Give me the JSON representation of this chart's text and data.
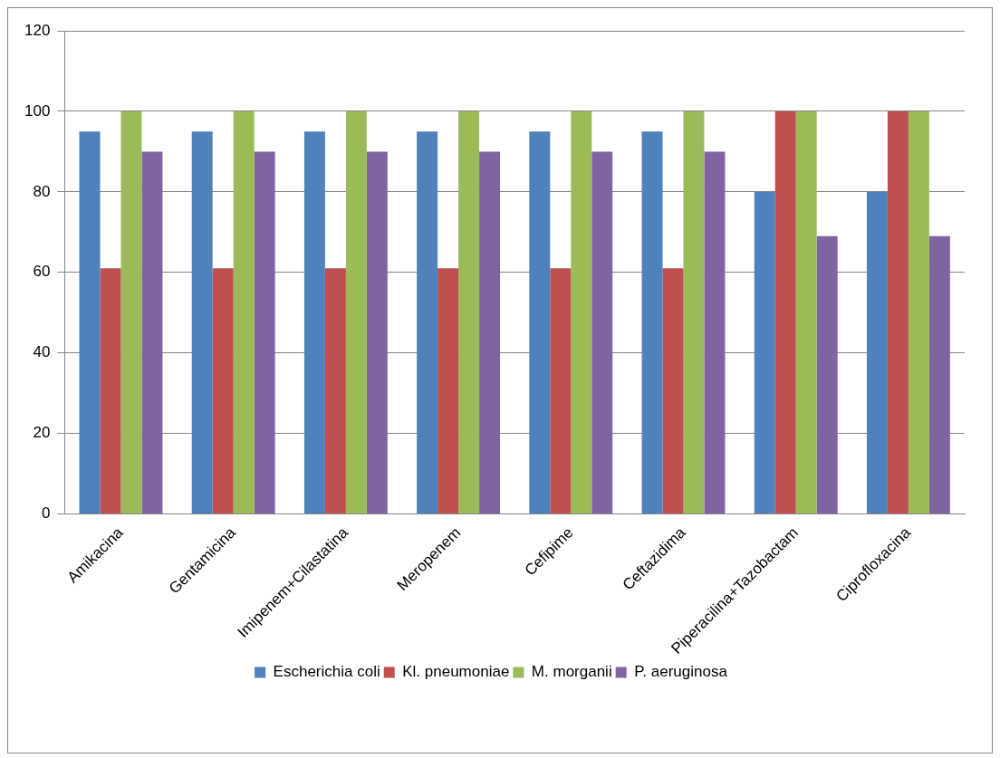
{
  "chart_data": {
    "type": "bar",
    "categories": [
      "Amikacina",
      "Gentamicina",
      "Imipenem+Cilastatina",
      "Meropenem",
      "Cefipime",
      "Ceftazidima",
      "Piperacilina+Tazobactam",
      "Ciprofloxacina"
    ],
    "series": [
      {
        "name": "Escherichia coli",
        "color": "#4f81bd",
        "values": [
          95,
          95,
          95,
          95,
          95,
          95,
          80,
          80
        ]
      },
      {
        "name": "Kl. pneumoniae",
        "color": "#c0504d",
        "values": [
          61,
          61,
          61,
          61,
          61,
          61,
          100,
          100
        ]
      },
      {
        "name": "M. morganii",
        "color": "#9bbb59",
        "values": [
          100,
          100,
          100,
          100,
          100,
          100,
          100,
          100
        ]
      },
      {
        "name": "P. aeruginosa",
        "color": "#8064a2",
        "values": [
          90,
          90,
          90,
          90,
          90,
          90,
          69,
          69
        ]
      }
    ],
    "ylim": [
      0,
      120
    ],
    "yticks": [
      0,
      20,
      40,
      60,
      80,
      100,
      120
    ],
    "grid": "y",
    "legend": "bottom"
  }
}
